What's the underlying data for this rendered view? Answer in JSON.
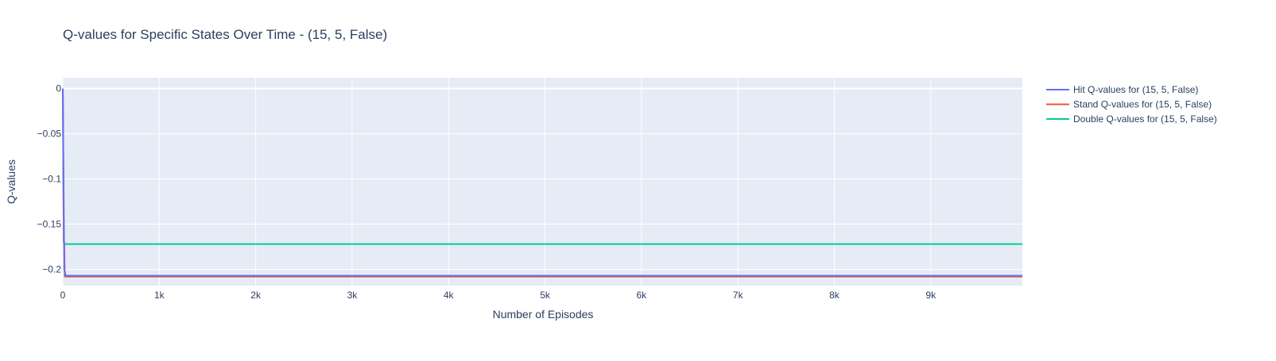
{
  "chart_data": {
    "type": "line",
    "title": "Q-values for Specific States Over Time - (15, 5, False)",
    "xlabel": "Number of Episodes",
    "ylabel": "Q-values",
    "xlim": [
      0,
      9950
    ],
    "ylim": [
      -0.218,
      0.012
    ],
    "x_ticks": [
      0,
      1000,
      2000,
      3000,
      4000,
      5000,
      6000,
      7000,
      8000,
      9000
    ],
    "x_tick_labels": [
      "0",
      "1k",
      "2k",
      "3k",
      "4k",
      "5k",
      "6k",
      "7k",
      "8k",
      "9k"
    ],
    "y_ticks": [
      0,
      -0.05,
      -0.1,
      -0.15,
      -0.2
    ],
    "y_tick_labels": [
      "0",
      "−0.05",
      "−0.1",
      "−0.15",
      "−0.2"
    ],
    "grid": true,
    "legend_position": "top-right, outside plot",
    "plot_background": "#e5ecf6",
    "series": [
      {
        "name": "Hit Q-values for (15, 5, False)",
        "color": "#636efa",
        "x": [
          0,
          15,
          30,
          50,
          100,
          1000,
          2000,
          3000,
          4000,
          5000,
          6000,
          7000,
          8000,
          9000,
          9950
        ],
        "y": [
          0,
          -0.2,
          -0.207,
          -0.207,
          -0.207,
          -0.207,
          -0.207,
          -0.207,
          -0.207,
          -0.207,
          -0.207,
          -0.207,
          -0.207,
          -0.207,
          -0.207
        ]
      },
      {
        "name": "Stand Q-values for (15, 5, False)",
        "color": "#ef553b",
        "x": [
          0,
          10,
          15,
          20,
          30,
          100,
          1000,
          2000,
          3000,
          4000,
          5000,
          6000,
          7000,
          8000,
          9000,
          9950
        ],
        "y": [
          0,
          -0.17,
          -0.17,
          -0.208,
          -0.208,
          -0.208,
          -0.208,
          -0.208,
          -0.208,
          -0.208,
          -0.208,
          -0.208,
          -0.208,
          -0.208,
          -0.208,
          -0.208
        ]
      },
      {
        "name": "Double Q-values for (15, 5, False)",
        "color": "#00cc96",
        "x": [
          0,
          10,
          20,
          100,
          1000,
          2000,
          3000,
          4000,
          5000,
          6000,
          7000,
          8000,
          9000,
          9950
        ],
        "y": [
          0,
          -0.17,
          -0.172,
          -0.172,
          -0.172,
          -0.172,
          -0.172,
          -0.172,
          -0.172,
          -0.172,
          -0.172,
          -0.172,
          -0.172,
          -0.172
        ]
      }
    ]
  }
}
